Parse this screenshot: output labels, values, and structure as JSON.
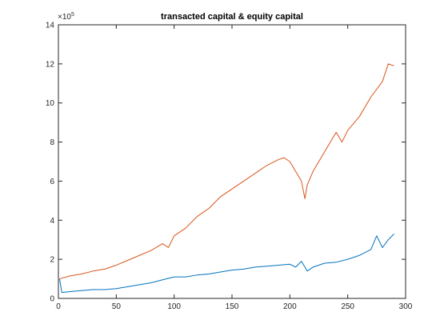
{
  "chart_data": {
    "type": "line",
    "title": "transacted capital & equity capital",
    "xlabel": "",
    "ylabel": "",
    "xlim": [
      0,
      300
    ],
    "ylim": [
      0,
      14
    ],
    "y_multiplier_label": "×10",
    "y_multiplier_exponent": "5",
    "xticks": [
      0,
      50,
      100,
      150,
      200,
      250,
      300
    ],
    "xtick_labels": [
      "0",
      "50",
      "100",
      "150",
      "200",
      "250",
      "300"
    ],
    "yticks": [
      0,
      2,
      4,
      6,
      8,
      10,
      12,
      14
    ],
    "ytick_labels": [
      "0",
      "2",
      "4",
      "6",
      "8",
      "10",
      "12",
      "14"
    ],
    "grid": false,
    "legend": "none",
    "series": [
      {
        "color": "#D95319",
        "x": [
          1,
          10,
          20,
          30,
          40,
          50,
          60,
          70,
          80,
          90,
          95,
          100,
          110,
          120,
          130,
          140,
          150,
          160,
          170,
          180,
          190,
          195,
          200,
          205,
          210,
          213,
          215,
          220,
          230,
          240,
          245,
          250,
          260,
          270,
          280,
          285,
          290
        ],
        "y": [
          1.0,
          1.15,
          1.25,
          1.4,
          1.5,
          1.7,
          1.95,
          2.2,
          2.45,
          2.8,
          2.6,
          3.2,
          3.6,
          4.2,
          4.6,
          5.2,
          5.6,
          6.0,
          6.4,
          6.8,
          7.1,
          7.2,
          7.0,
          6.5,
          6.0,
          5.1,
          5.8,
          6.5,
          7.5,
          8.5,
          8.0,
          8.6,
          9.3,
          10.3,
          11.1,
          12.0,
          11.9
        ]
      },
      {
        "color": "#0072BD",
        "x": [
          1,
          3,
          10,
          20,
          30,
          40,
          50,
          60,
          70,
          80,
          90,
          100,
          110,
          120,
          130,
          140,
          150,
          160,
          170,
          180,
          190,
          200,
          205,
          210,
          215,
          220,
          230,
          240,
          250,
          260,
          270,
          275,
          280,
          285,
          290
        ],
        "y": [
          1.0,
          0.3,
          0.35,
          0.4,
          0.45,
          0.45,
          0.5,
          0.6,
          0.7,
          0.8,
          0.95,
          1.1,
          1.1,
          1.2,
          1.25,
          1.35,
          1.45,
          1.5,
          1.6,
          1.65,
          1.7,
          1.75,
          1.6,
          1.9,
          1.4,
          1.6,
          1.8,
          1.85,
          2.0,
          2.2,
          2.5,
          3.2,
          2.6,
          3.0,
          3.3
        ]
      }
    ]
  }
}
